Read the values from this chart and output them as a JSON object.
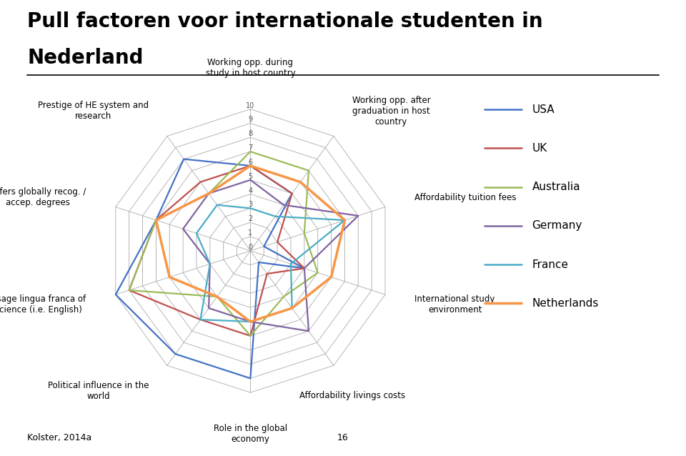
{
  "title_line1": "Pull factoren voor internationale studenten in",
  "title_line2": "Nederland",
  "categories": [
    "Working opp. during\nstudy in host country",
    "Working opp. after\ngraduation in host\ncountry",
    "Affordability tuition fees",
    "International study\nenvironment",
    "Affordability livings costs",
    "Role in the global\neconomy",
    "Political influence in the\nworld",
    "Usage lingua franca of\nscience (i.e. English)",
    "Offers globally recog. /\naccep. degrees",
    "Prestige of HE system and\nresearch"
  ],
  "series": {
    "USA": [
      6,
      5,
      1,
      4,
      1,
      9,
      9,
      10,
      7,
      8
    ],
    "UK": [
      6,
      5,
      2,
      4,
      2,
      6,
      6,
      9,
      7,
      6
    ],
    "Australia": [
      7,
      7,
      4,
      5,
      4,
      6,
      4,
      9,
      7,
      5
    ],
    "Germany": [
      5,
      4,
      8,
      4,
      7,
      5,
      5,
      3,
      5,
      5
    ],
    "France": [
      3,
      3,
      7,
      3,
      5,
      5,
      6,
      3,
      4,
      4
    ],
    "Netherlands": [
      6,
      6,
      7,
      6,
      5,
      5,
      4,
      6,
      7,
      5
    ]
  },
  "colors": {
    "USA": "#4472C4",
    "UK": "#C0504D",
    "Australia": "#9BBB59",
    "Germany": "#8064A2",
    "France": "#4BACC6",
    "Netherlands": "#F79646"
  },
  "r_max": 10,
  "r_ticks": [
    0,
    1,
    2,
    3,
    4,
    5,
    6,
    7,
    8,
    9,
    10
  ],
  "footer_left": "Kolster, 2014a",
  "footer_center": "16",
  "background_color": "#FFFFFF",
  "label_fontsize": 8.5,
  "title_fontsize": 20,
  "legend_fontsize": 11
}
